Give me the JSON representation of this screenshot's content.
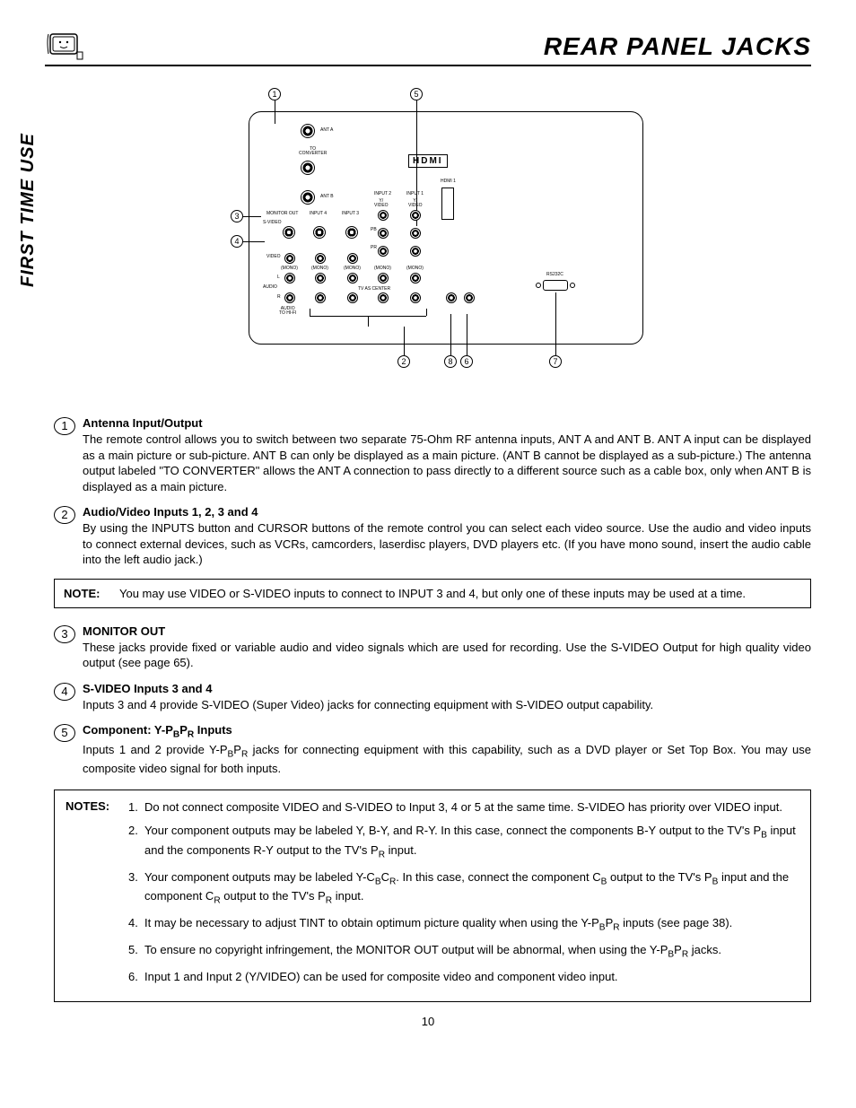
{
  "header": {
    "title": "REAR PANEL JACKS",
    "side_tab": "FIRST TIME USE",
    "page_number": "10"
  },
  "diagram": {
    "callouts": [
      "1",
      "2",
      "3",
      "4",
      "5",
      "6",
      "7",
      "8"
    ],
    "labels": {
      "ant_a": "ANT A",
      "to_converter": "TO\nCONVERTER",
      "ant_b": "ANT B",
      "monitor_out": "MONITOR OUT",
      "input4": "INPUT 4",
      "input3": "INPUT 3",
      "input2": "INPUT 2",
      "input1": "INPUT 1",
      "svideo": "S-VIDEO",
      "video": "VIDEO",
      "y_video": "Y/\nVIDEO",
      "pb": "PB",
      "pr": "PR",
      "mono": "(MONO)",
      "audio": "AUDIO",
      "l": "L",
      "r": "R",
      "audio_cntr": "AUDIO\nTO HI-FI",
      "tv_center": "TV AS CENTER",
      "rs232": "RS232C",
      "hdmi": "HDMI",
      "hdmi1": "HDMI 1"
    }
  },
  "items": [
    {
      "num": "1",
      "heading": "Antenna Input/Output",
      "text": "The remote control allows you to switch between two separate 75-Ohm RF antenna inputs, ANT A and  ANT B.  ANT A input can be displayed as a main picture or sub-picture.  ANT B can only be displayed as a main picture.  (ANT B cannot be displayed as a sub-picture.)  The antenna output labeled \"TO CONVERTER\" allows the ANT A connection to pass directly to a different source such as a cable box, only when ANT B is displayed as a main picture."
    },
    {
      "num": "2",
      "heading": "Audio/Video Inputs 1, 2, 3 and 4",
      "text": "By using the INPUTS button and CURSOR buttons of the remote control you can select each video source. Use the audio and video inputs to connect external devices, such as VCRs, camcorders, laserdisc players, DVD players etc.  (If you have mono sound, insert the audio cable into the left audio jack.)"
    }
  ],
  "note": {
    "label": "NOTE:",
    "text": "You may use VIDEO or S-VIDEO inputs to connect to INPUT 3 and 4, but only one of these inputs may be used at a time."
  },
  "items2": [
    {
      "num": "3",
      "heading": "MONITOR OUT",
      "text": "These jacks provide fixed or variable audio and video signals which are used for recording.  Use the S-VIDEO Output for high quality video output (see page 65)."
    },
    {
      "num": "4",
      "heading": "S-VIDEO Inputs 3 and 4",
      "text": "Inputs 3 and 4 provide S-VIDEO (Super Video) jacks for connecting equipment with S-VIDEO output capability."
    },
    {
      "num": "5",
      "heading_html": "Component: Y-P<sub>B</sub>P<sub>R</sub> Inputs",
      "text_html": "Inputs 1 and 2 provide Y-P<sub>B</sub>P<sub>R</sub> jacks for connecting equipment with this capability, such as a DVD player or Set Top Box.  You may use composite video signal for both inputs."
    }
  ],
  "notes": {
    "label": "NOTES:",
    "list": [
      "Do not connect composite VIDEO and S-VIDEO to Input 3, 4 or 5 at the same time.  S-VIDEO has priority over VIDEO input.",
      "Your component outputs may be labeled Y, B-Y, and R-Y. In this case, connect the components B-Y output to the TV's P<sub>B</sub> input and the components R-Y output to the TV's P<sub>R</sub> input.",
      "Your component outputs may be labeled Y-C<sub>B</sub>C<sub>R</sub>.  In this case, connect the component C<sub>B</sub> output to the TV's P<sub>B</sub> input and the component C<sub>R</sub> output to the TV's P<sub>R</sub> input.",
      "It may be necessary to adjust TINT to obtain optimum picture quality when using the Y-P<sub>B</sub>P<sub>R</sub> inputs (see page 38).",
      "To ensure no copyright infringement, the MONITOR OUT output will be abnormal, when using the Y-P<sub>B</sub>P<sub>R</sub> jacks.",
      "Input 1 and Input  2 (Y/VIDEO) can be used for composite video and component video input."
    ]
  }
}
